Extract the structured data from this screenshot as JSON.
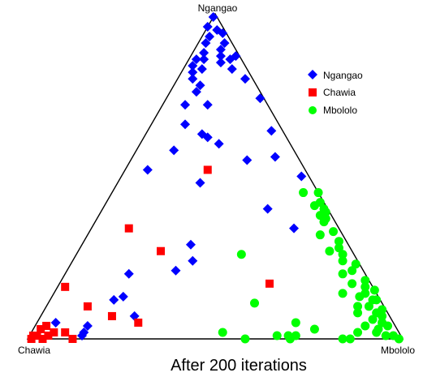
{
  "chart_data": {
    "type": "scatter",
    "subtype": "ternary",
    "caption": "After 200 iterations",
    "vertices": {
      "top": "Ngangao",
      "left": "Chawia",
      "right": "Mbololo"
    },
    "grid": false,
    "legend_position": "top-right",
    "series": [
      {
        "name": "Ngangao",
        "color": "#0000ff",
        "marker": "diamond",
        "points": [
          [
            0.99,
            0.01,
            0.0
          ],
          [
            0.96,
            0.04,
            0.0
          ],
          [
            0.95,
            0.02,
            0.03
          ],
          [
            0.94,
            0.01,
            0.05
          ],
          [
            0.93,
            0.05,
            0.02
          ],
          [
            0.91,
            0.07,
            0.02
          ],
          [
            0.91,
            0.02,
            0.07
          ],
          [
            0.89,
            0.04,
            0.07
          ],
          [
            0.88,
            0.09,
            0.03
          ],
          [
            0.87,
            0.01,
            0.12
          ],
          [
            0.87,
            0.05,
            0.08
          ],
          [
            0.86,
            0.1,
            0.04
          ],
          [
            0.86,
            0.12,
            0.02
          ],
          [
            0.86,
            0.03,
            0.11
          ],
          [
            0.85,
            0.06,
            0.09
          ],
          [
            0.84,
            0.14,
            0.02
          ],
          [
            0.83,
            0.04,
            0.13
          ],
          [
            0.83,
            0.12,
            0.05
          ],
          [
            0.82,
            0.15,
            0.03
          ],
          [
            0.8,
            0.16,
            0.04
          ],
          [
            0.8,
            0.02,
            0.18
          ],
          [
            0.78,
            0.15,
            0.07
          ],
          [
            0.76,
            0.17,
            0.07
          ],
          [
            0.74,
            0.01,
            0.25
          ],
          [
            0.72,
            0.22,
            0.06
          ],
          [
            0.72,
            0.16,
            0.12
          ],
          [
            0.66,
            0.25,
            0.09
          ],
          [
            0.64,
            0.03,
            0.33
          ],
          [
            0.63,
            0.22,
            0.15
          ],
          [
            0.62,
            0.21,
            0.17
          ],
          [
            0.6,
            0.19,
            0.21
          ],
          [
            0.58,
            0.32,
            0.1
          ],
          [
            0.56,
            0.06,
            0.38
          ],
          [
            0.55,
            0.14,
            0.31
          ],
          [
            0.52,
            0.42,
            0.06
          ],
          [
            0.5,
            0.02,
            0.48
          ],
          [
            0.48,
            0.3,
            0.22
          ],
          [
            0.4,
            0.16,
            0.44
          ],
          [
            0.34,
            0.12,
            0.54
          ],
          [
            0.29,
            0.42,
            0.29
          ],
          [
            0.24,
            0.44,
            0.32
          ],
          [
            0.21,
            0.5,
            0.29
          ],
          [
            0.2,
            0.63,
            0.17
          ],
          [
            0.13,
            0.68,
            0.19
          ],
          [
            0.12,
            0.71,
            0.17
          ],
          [
            0.07,
            0.68,
            0.25
          ],
          [
            0.05,
            0.9,
            0.05
          ],
          [
            0.04,
            0.82,
            0.14
          ],
          [
            0.02,
            0.84,
            0.14
          ],
          [
            0.01,
            0.85,
            0.14
          ]
        ]
      },
      {
        "name": "Chawia",
        "color": "#ff0000",
        "marker": "square",
        "points": [
          [
            0.52,
            0.26,
            0.22
          ],
          [
            0.34,
            0.56,
            0.1
          ],
          [
            0.27,
            0.51,
            0.22
          ],
          [
            0.17,
            0.27,
            0.56
          ],
          [
            0.16,
            0.82,
            0.02
          ],
          [
            0.1,
            0.79,
            0.11
          ],
          [
            0.07,
            0.74,
            0.19
          ],
          [
            0.05,
            0.68,
            0.27
          ],
          [
            0.04,
            0.93,
            0.03
          ],
          [
            0.03,
            0.95,
            0.02
          ],
          [
            0.02,
            0.89,
            0.09
          ],
          [
            0.02,
            0.92,
            0.06
          ],
          [
            0.01,
            0.98,
            0.01
          ],
          [
            0.01,
            0.94,
            0.05
          ],
          [
            0.01,
            0.97,
            0.02
          ],
          [
            0.0,
            0.99,
            0.01
          ],
          [
            0.0,
            0.88,
            0.12
          ],
          [
            0.0,
            0.96,
            0.04
          ]
        ]
      },
      {
        "name": "Mbololo",
        "color": "#00ff00",
        "marker": "circle",
        "points": [
          [
            0.45,
            0.0,
            0.55
          ],
          [
            0.45,
            0.04,
            0.51
          ],
          [
            0.42,
            0.01,
            0.57
          ],
          [
            0.41,
            0.03,
            0.56
          ],
          [
            0.4,
            0.01,
            0.59
          ],
          [
            0.39,
            0.01,
            0.6
          ],
          [
            0.38,
            0.03,
            0.59
          ],
          [
            0.37,
            0.02,
            0.61
          ],
          [
            0.36,
            0.03,
            0.61
          ],
          [
            0.33,
            0.02,
            0.65
          ],
          [
            0.32,
            0.06,
            0.62
          ],
          [
            0.3,
            0.02,
            0.68
          ],
          [
            0.28,
            0.03,
            0.69
          ],
          [
            0.27,
            0.06,
            0.67
          ],
          [
            0.26,
            0.03,
            0.71
          ],
          [
            0.26,
            0.3,
            0.44
          ],
          [
            0.24,
            0.04,
            0.72
          ],
          [
            0.23,
            0.01,
            0.76
          ],
          [
            0.21,
            0.03,
            0.76
          ],
          [
            0.2,
            0.06,
            0.74
          ],
          [
            0.18,
            0.01,
            0.81
          ],
          [
            0.17,
            0.05,
            0.78
          ],
          [
            0.16,
            0.02,
            0.82
          ],
          [
            0.15,
            0.0,
            0.85
          ],
          [
            0.14,
            0.03,
            0.83
          ],
          [
            0.14,
            0.09,
            0.77
          ],
          [
            0.13,
            0.05,
            0.82
          ],
          [
            0.12,
            0.01,
            0.87
          ],
          [
            0.12,
            0.02,
            0.86
          ],
          [
            0.11,
            0.34,
            0.55
          ],
          [
            0.1,
            0.07,
            0.83
          ],
          [
            0.1,
            0.04,
            0.86
          ],
          [
            0.09,
            0.01,
            0.9
          ],
          [
            0.08,
            0.08,
            0.84
          ],
          [
            0.08,
            0.03,
            0.89
          ],
          [
            0.07,
            0.02,
            0.91
          ],
          [
            0.06,
            0.05,
            0.89
          ],
          [
            0.05,
            0.26,
            0.69
          ],
          [
            0.05,
            0.03,
            0.92
          ],
          [
            0.04,
            0.08,
            0.88
          ],
          [
            0.04,
            0.02,
            0.94
          ],
          [
            0.03,
            0.22,
            0.75
          ],
          [
            0.03,
            0.05,
            0.92
          ],
          [
            0.02,
            0.47,
            0.51
          ],
          [
            0.02,
            0.11,
            0.87
          ],
          [
            0.02,
            0.06,
            0.92
          ],
          [
            0.01,
            0.02,
            0.97
          ],
          [
            0.01,
            0.28,
            0.71
          ],
          [
            0.01,
            0.33,
            0.66
          ],
          [
            0.01,
            0.3,
            0.69
          ],
          [
            0.01,
            0.04,
            0.95
          ],
          [
            0.0,
            0.42,
            0.58
          ],
          [
            0.0,
            0.14,
            0.86
          ],
          [
            0.0,
            0.01,
            0.99
          ],
          [
            0.0,
            0.3,
            0.7
          ],
          [
            0.0,
            0.16,
            0.84
          ]
        ]
      }
    ]
  }
}
